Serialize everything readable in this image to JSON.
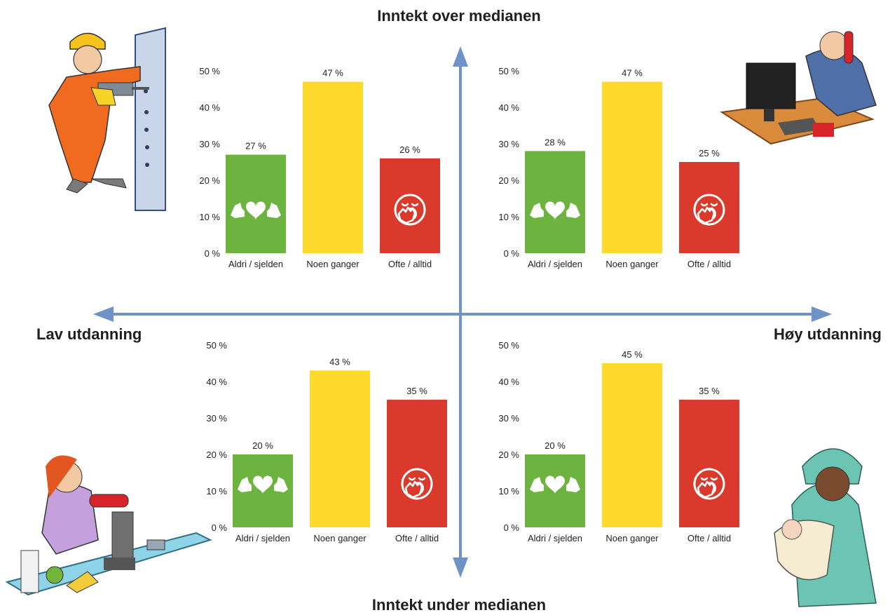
{
  "axes": {
    "top": "Inntekt over medianen",
    "bottom": "Inntekt under medianen",
    "left": "Lav utdanning",
    "right": "Høy utdanning"
  },
  "colors": {
    "arrow": "#6f93c8",
    "bar_green": "#6db33f",
    "bar_yellow": "#fcd92a",
    "bar_red": "#d93a2b"
  },
  "icons": {
    "green_bar": "flexing-heart-icon",
    "red_bar": "yawning-face-icon",
    "quadrant_illustrations": [
      "construction-worker-illustration",
      "office-worker-phone-illustration",
      "cashier-drinking-illustration",
      "nurse-with-baby-illustration"
    ]
  },
  "chart_data": [
    {
      "type": "bar",
      "quadrant": "top-left",
      "categories": [
        "Aldri / sjelden",
        "Noen ganger",
        "Ofte / alltid"
      ],
      "values": [
        27,
        47,
        26
      ],
      "value_labels": [
        "27 %",
        "47 %",
        "26 %"
      ],
      "yticks": [
        "0 %",
        "10 %",
        "20 %",
        "30 %",
        "40 %",
        "50 %"
      ],
      "ylim": [
        0,
        50
      ],
      "grid": false
    },
    {
      "type": "bar",
      "quadrant": "top-right",
      "categories": [
        "Aldri / sjelden",
        "Noen ganger",
        "Ofte / alltid"
      ],
      "values": [
        28,
        47,
        25
      ],
      "value_labels": [
        "28 %",
        "47 %",
        "25 %"
      ],
      "yticks": [
        "0 %",
        "10 %",
        "20 %",
        "30 %",
        "40 %",
        "50 %"
      ],
      "ylim": [
        0,
        50
      ],
      "grid": false
    },
    {
      "type": "bar",
      "quadrant": "bottom-left",
      "categories": [
        "Aldri / sjelden",
        "Noen ganger",
        "Ofte / alltid"
      ],
      "values": [
        20,
        43,
        35
      ],
      "value_labels": [
        "20 %",
        "43 %",
        "35 %"
      ],
      "yticks": [
        "0 %",
        "10 %",
        "20 %",
        "30 %",
        "40 %",
        "50 %"
      ],
      "ylim": [
        0,
        50
      ],
      "grid": false
    },
    {
      "type": "bar",
      "quadrant": "bottom-right",
      "categories": [
        "Aldri / sjelden",
        "Noen ganger",
        "Ofte / alltid"
      ],
      "values": [
        20,
        45,
        35
      ],
      "value_labels": [
        "20 %",
        "45 %",
        "35 %"
      ],
      "yticks": [
        "0 %",
        "10 %",
        "20 %",
        "30 %",
        "40 %",
        "50 %"
      ],
      "ylim": [
        0,
        50
      ],
      "grid": false
    }
  ]
}
